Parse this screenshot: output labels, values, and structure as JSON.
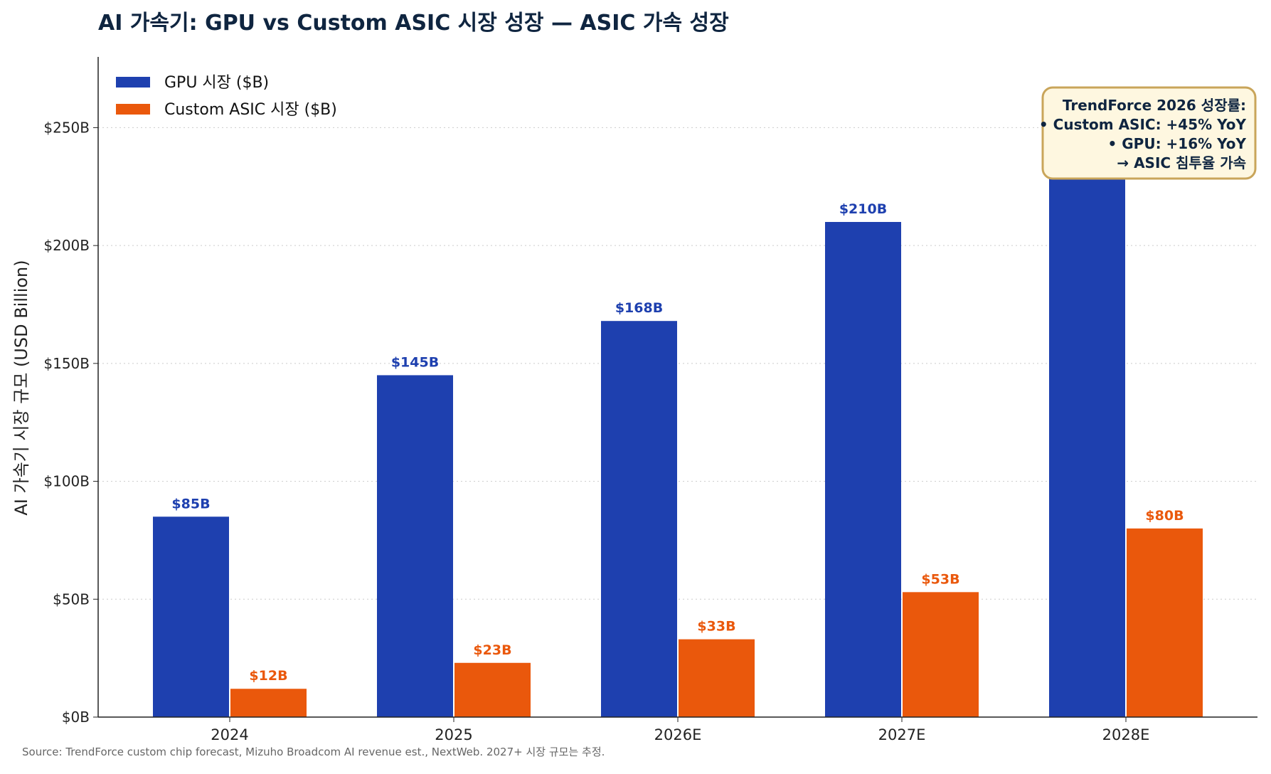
{
  "chart_data": {
    "type": "bar",
    "title": "AI 가속기: GPU vs Custom ASIC 시장 성장 — ASIC 가속 성장",
    "xlabel": "",
    "ylabel": "AI 가속기 시장 규모 (USD Billion)",
    "categories": [
      "2024",
      "2025",
      "2026E",
      "2027E",
      "2028E"
    ],
    "series": [
      {
        "name": "GPU 시장 ($B)",
        "values": [
          85,
          145,
          168,
          210,
          250
        ],
        "labels": [
          "$85B",
          "$145B",
          "$168B",
          "$210B",
          ""
        ],
        "color": "#1e40af"
      },
      {
        "name": "Custom ASIC 시장 ($B)",
        "values": [
          12,
          23,
          33,
          53,
          80
        ],
        "labels": [
          "$12B",
          "$23B",
          "$33B",
          "$53B",
          "$80B"
        ],
        "color": "#ea580c"
      }
    ],
    "ylim": [
      0,
      280
    ],
    "yticks": [
      0,
      50,
      100,
      150,
      200,
      250
    ],
    "ytick_labels": [
      "$0B",
      "$50B",
      "$100B",
      "$150B",
      "$200B",
      "$250B"
    ],
    "grid": "horizontal dotted",
    "legend_position": "top-left",
    "annotation": {
      "lines": [
        "TrendForce 2026 성장률:",
        "• Custom ASIC: +45% YoY",
        "• GPU: +16% YoY",
        "→ ASIC 침투율 가속"
      ],
      "position": "top-right",
      "background": "#fef7e0",
      "border": "#c9a55a"
    },
    "source": "Source: TrendForce custom chip forecast, Mizuho Broadcom AI revenue est., NextWeb. 2027+ 시장 규모는 추정."
  }
}
